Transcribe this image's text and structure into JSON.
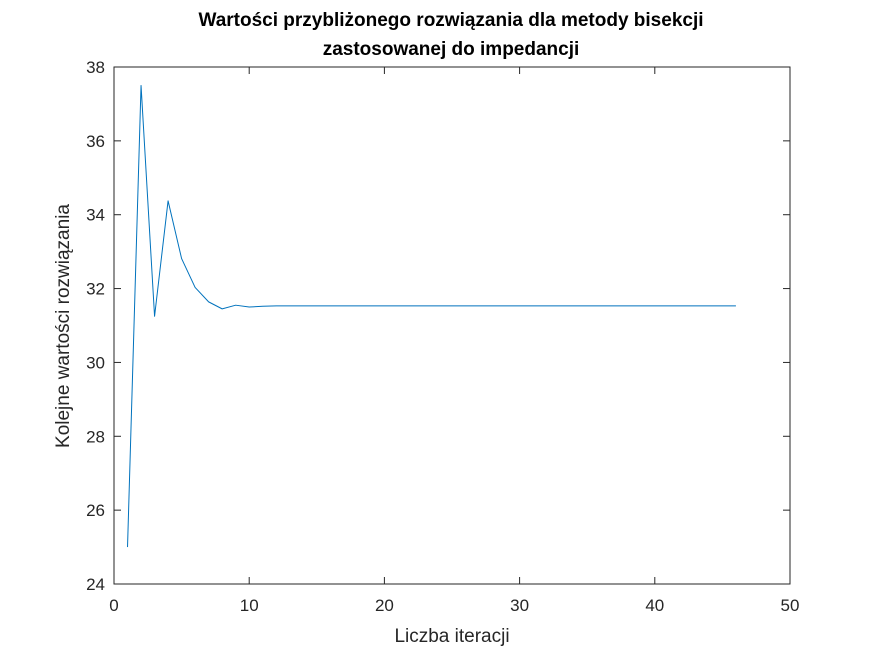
{
  "chart_data": {
    "type": "line",
    "title": [
      "Wartości przybliżonego rozwiązania dla metody bisekcji",
      "zastosowanej do impedancji"
    ],
    "xlabel": "Liczba iteracji",
    "ylabel": "Kolejne wartości rozwiązania",
    "xlim": [
      0,
      50
    ],
    "ylim": [
      24,
      38
    ],
    "xticks": [
      0,
      10,
      20,
      30,
      40,
      50
    ],
    "yticks": [
      24,
      26,
      28,
      30,
      32,
      34,
      36,
      38
    ],
    "grid": false,
    "legend": "none",
    "series": [
      {
        "color": "#0072BD",
        "x": [
          1,
          2,
          3,
          4,
          5,
          6,
          7,
          8,
          9,
          10,
          11,
          12,
          13,
          14,
          15,
          16,
          17,
          18,
          19,
          20,
          21,
          22,
          23,
          24,
          25,
          26,
          27,
          28,
          29,
          30,
          31,
          32,
          33,
          34,
          35,
          36,
          37,
          38,
          39,
          40,
          41,
          42,
          43,
          44,
          45,
          46
        ],
        "y": [
          25.0,
          37.5,
          31.25,
          34.375,
          32.8125,
          32.03,
          31.64,
          31.45,
          31.55,
          31.5,
          31.52,
          31.53,
          31.53,
          31.53,
          31.53,
          31.53,
          31.53,
          31.53,
          31.53,
          31.53,
          31.53,
          31.53,
          31.53,
          31.53,
          31.53,
          31.53,
          31.53,
          31.53,
          31.53,
          31.53,
          31.53,
          31.53,
          31.53,
          31.53,
          31.53,
          31.53,
          31.53,
          31.53,
          31.53,
          31.53,
          31.53,
          31.53,
          31.53,
          31.53,
          31.53,
          31.53
        ]
      }
    ]
  }
}
